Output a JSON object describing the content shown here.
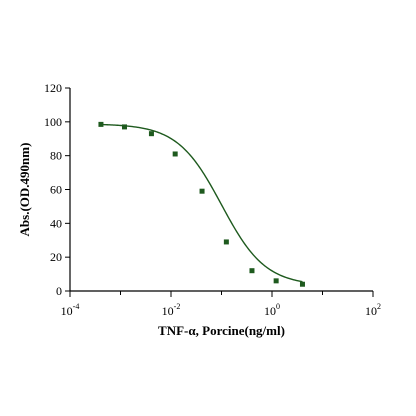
{
  "chart_data": {
    "type": "scatter",
    "title": "",
    "xlabel": "TNF-α, Porcine(ng/ml)",
    "ylabel": "Abs.(OD.490nm)",
    "xscale": "log10",
    "xlim": [
      0.0001,
      100
    ],
    "ylim": [
      0,
      120
    ],
    "x_tick_labels": [
      {
        "base": "10",
        "exp": "-4"
      },
      {
        "base": "10",
        "exp": "-2"
      },
      {
        "base": "10",
        "exp": "0"
      },
      {
        "base": "10",
        "exp": "2"
      }
    ],
    "y_tick_labels": [
      "0",
      "20",
      "40",
      "60",
      "80",
      "100",
      "120"
    ],
    "grid": false,
    "legend": "none",
    "colors": {
      "series": "#1e5a1e",
      "axis": "#000000"
    },
    "series": [
      {
        "x": [
          0.00041,
          0.0012,
          0.0041,
          0.0121,
          0.0412,
          0.1248,
          0.4013,
          1.2082,
          4.0125
        ],
        "y": [
          98.5,
          97,
          93,
          81,
          59,
          29,
          12,
          6,
          4
        ],
        "fit": "4PL"
      }
    ]
  }
}
